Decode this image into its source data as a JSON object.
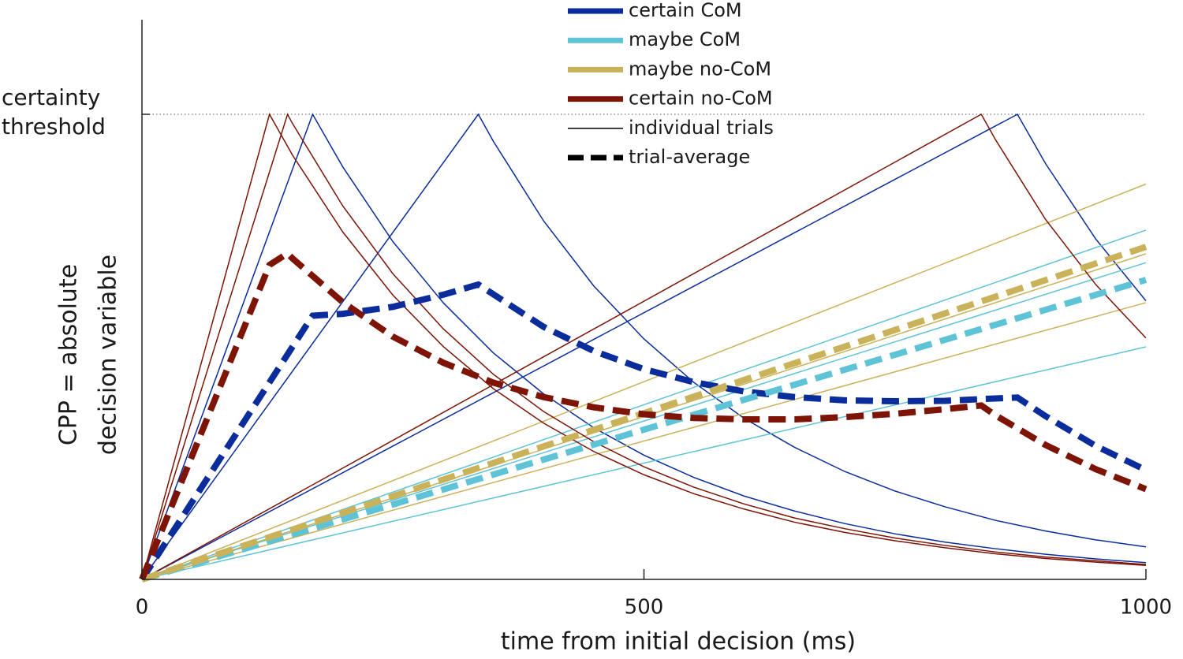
{
  "chart_data": {
    "type": "line",
    "xlabel": "time from initial decision (ms)",
    "ylabel": [
      "CPP = absolute",
      "decision variable"
    ],
    "xlim": [
      0,
      1000
    ],
    "xticks": [
      0,
      500,
      1000
    ],
    "ylim": [
      0,
      1.2
    ],
    "threshold": {
      "value": 1,
      "label": [
        "certainty",
        "threshold"
      ]
    },
    "line_styles": [
      "individual trials",
      "trial-average"
    ],
    "series": [
      {
        "name": "certain CoM",
        "color": "#0b2d9c",
        "trials": [
          {
            "x": [
              0,
              170,
              200,
              250,
              300,
              350,
              400,
              450,
              500,
              550,
              600,
              650,
              700,
              750,
              800,
              850,
              900,
              950,
              1000
            ],
            "values": [
              0,
              1,
              0.887,
              0.726,
              0.595,
              0.487,
              0.399,
              0.326,
              0.267,
              0.219,
              0.179,
              0.147,
              0.12,
              0.098,
              0.08,
              0.066,
              0.054,
              0.044,
              0.036
            ]
          },
          {
            "x": [
              0,
              335,
              350,
              400,
              450,
              500,
              550,
              600,
              650,
              700,
              750,
              800,
              850,
              900,
              950,
              1000
            ],
            "values": [
              0,
              1,
              0.942,
              0.771,
              0.631,
              0.517,
              0.423,
              0.346,
              0.284,
              0.232,
              0.19,
              0.156,
              0.127,
              0.104,
              0.085,
              0.07
            ]
          },
          {
            "x": [
              0,
              872,
              900,
              950,
              1000
            ],
            "values": [
              0,
              1,
              0.894,
              0.732,
              0.599
            ]
          }
        ],
        "average": {
          "x": [
            0,
            170,
            200,
            250,
            300,
            335,
            400,
            450,
            500,
            550,
            600,
            650,
            700,
            750,
            800,
            850,
            872,
            900,
            950,
            1000
          ],
          "values": [
            0,
            0.567,
            0.571,
            0.586,
            0.612,
            0.634,
            0.543,
            0.491,
            0.452,
            0.424,
            0.404,
            0.392,
            0.385,
            0.383,
            0.384,
            0.389,
            0.391,
            0.351,
            0.287,
            0.235
          ]
        }
      },
      {
        "name": "maybe CoM",
        "color": "#5ec3d6",
        "trials": [
          {
            "x": [
              0,
              1000
            ],
            "values": [
              0,
              0.751
            ]
          },
          {
            "x": [
              0,
              1000
            ],
            "values": [
              0,
              0.681
            ]
          },
          {
            "x": [
              0,
              1000
            ],
            "values": [
              0,
              0.5
            ]
          }
        ],
        "average": {
          "x": [
            0,
            1000
          ],
          "values": [
            0,
            0.644
          ]
        }
      },
      {
        "name": "maybe no-CoM",
        "color": "#c9b259",
        "trials": [
          {
            "x": [
              0,
              1000
            ],
            "values": [
              0,
              0.85
            ]
          },
          {
            "x": [
              0,
              1000
            ],
            "values": [
              0,
              0.7
            ]
          },
          {
            "x": [
              0,
              1000
            ],
            "values": [
              0,
              0.595
            ]
          }
        ],
        "average": {
          "x": [
            0,
            1000
          ],
          "values": [
            0,
            0.715
          ]
        }
      },
      {
        "name": "certain no-CoM",
        "color": "#7d1406",
        "trials": [
          {
            "x": [
              0,
              127,
              150,
              200,
              250,
              300,
              350,
              400,
              450,
              500,
              550,
              600,
              650,
              700,
              750,
              800,
              850,
              900,
              950,
              1000
            ],
            "values": [
              0,
              1,
              0.912,
              0.747,
              0.611,
              0.501,
              0.41,
              0.336,
              0.275,
              0.225,
              0.184,
              0.151,
              0.123,
              0.101,
              0.083,
              0.068,
              0.055,
              0.045,
              0.037,
              0.03
            ]
          },
          {
            "x": [
              0,
              145,
              150,
              200,
              250,
              300,
              350,
              400,
              450,
              500,
              550,
              600,
              650,
              700,
              750,
              800,
              850,
              900,
              950,
              1000
            ],
            "values": [
              0,
              1,
              0.98,
              0.803,
              0.657,
              0.539,
              0.441,
              0.361,
              0.296,
              0.242,
              0.198,
              0.162,
              0.132,
              0.109,
              0.089,
              0.073,
              0.059,
              0.048,
              0.04,
              0.032
            ]
          },
          {
            "x": [
              0,
              836,
              850,
              900,
              950,
              1000
            ],
            "values": [
              0,
              1,
              0.946,
              0.774,
              0.634,
              0.519
            ]
          }
        ],
        "average": {
          "x": [
            0,
            127,
            145,
            150,
            200,
            250,
            300,
            350,
            400,
            450,
            500,
            550,
            600,
            650,
            700,
            750,
            800,
            836,
            850,
            900,
            950,
            1000
          ],
          "values": [
            0,
            0.676,
            0.701,
            0.69,
            0.596,
            0.522,
            0.466,
            0.423,
            0.392,
            0.37,
            0.355,
            0.347,
            0.344,
            0.344,
            0.349,
            0.356,
            0.366,
            0.374,
            0.353,
            0.289,
            0.237,
            0.194
          ]
        }
      }
    ]
  }
}
